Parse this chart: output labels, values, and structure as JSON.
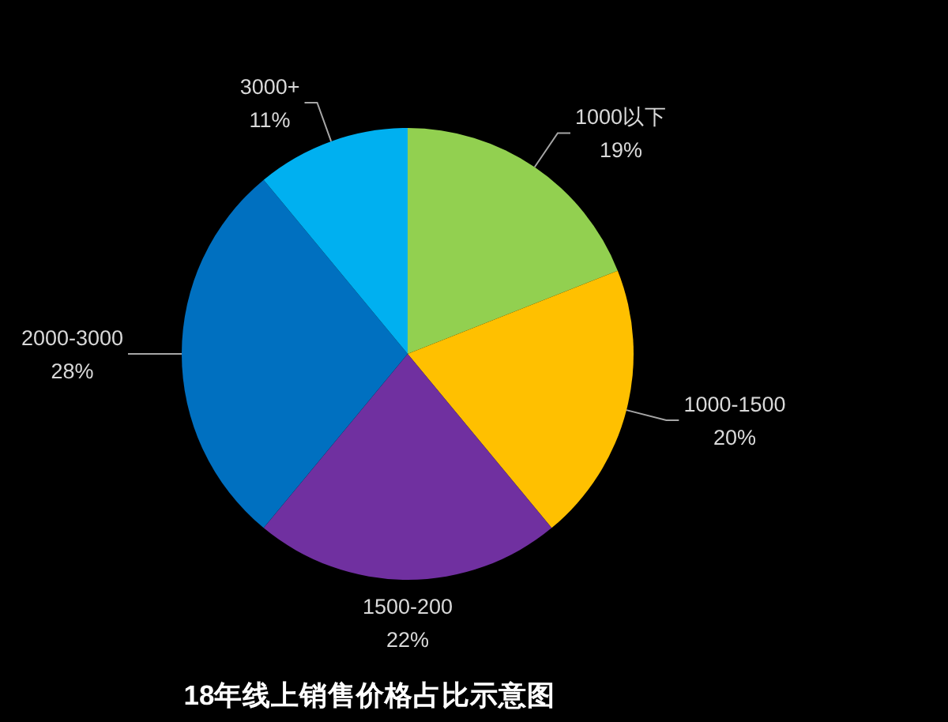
{
  "chart_data": {
    "type": "pie",
    "title": "18年线上销售价格占比示意图",
    "categories": [
      "1000以下",
      "1000-1500",
      "1500-200",
      "2000-3000",
      "3000+"
    ],
    "values": [
      19,
      20,
      22,
      28,
      11
    ],
    "colors": [
      "#92d050",
      "#ffc000",
      "#7030a0",
      "#0070c0",
      "#00b0f0"
    ],
    "value_labels": [
      "19%",
      "20%",
      "22%",
      "28%",
      "11%"
    ]
  }
}
